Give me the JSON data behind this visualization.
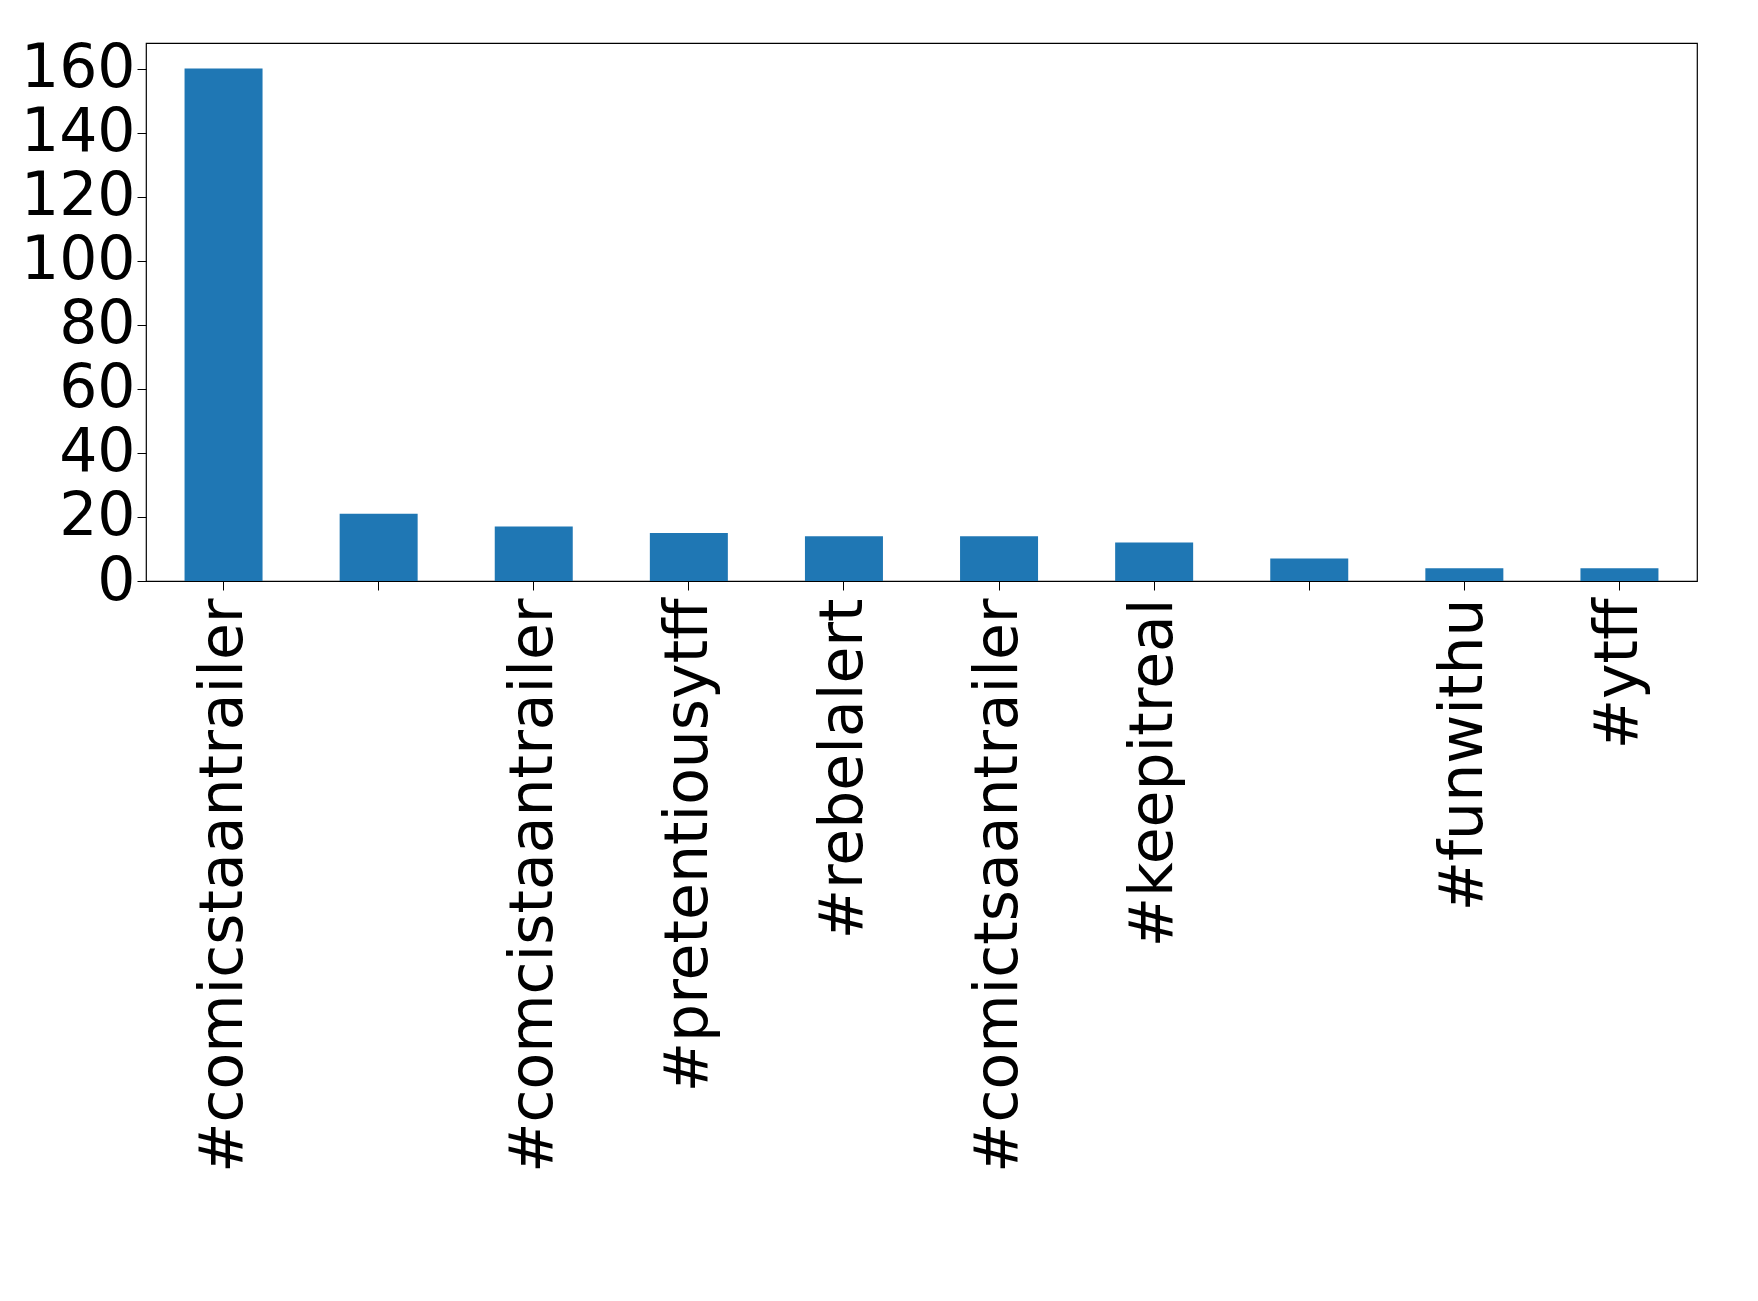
{
  "chart_data": {
    "type": "bar",
    "categories": [
      "#comicstaantrailer",
      null,
      "#comcistaantrailer",
      "#pretentiousytff",
      "#rebelalert",
      "#comictsaantrailer",
      "#keepitreal",
      null,
      "#funwithu",
      "#ytff"
    ],
    "values": [
      160,
      21,
      17,
      15,
      14,
      14,
      12,
      7,
      4,
      4
    ],
    "color": "#1f77b4",
    "ylim": [
      0,
      168
    ],
    "yticks": [
      0,
      20,
      40,
      60,
      80,
      100,
      120,
      140,
      160
    ],
    "grid": false
  }
}
